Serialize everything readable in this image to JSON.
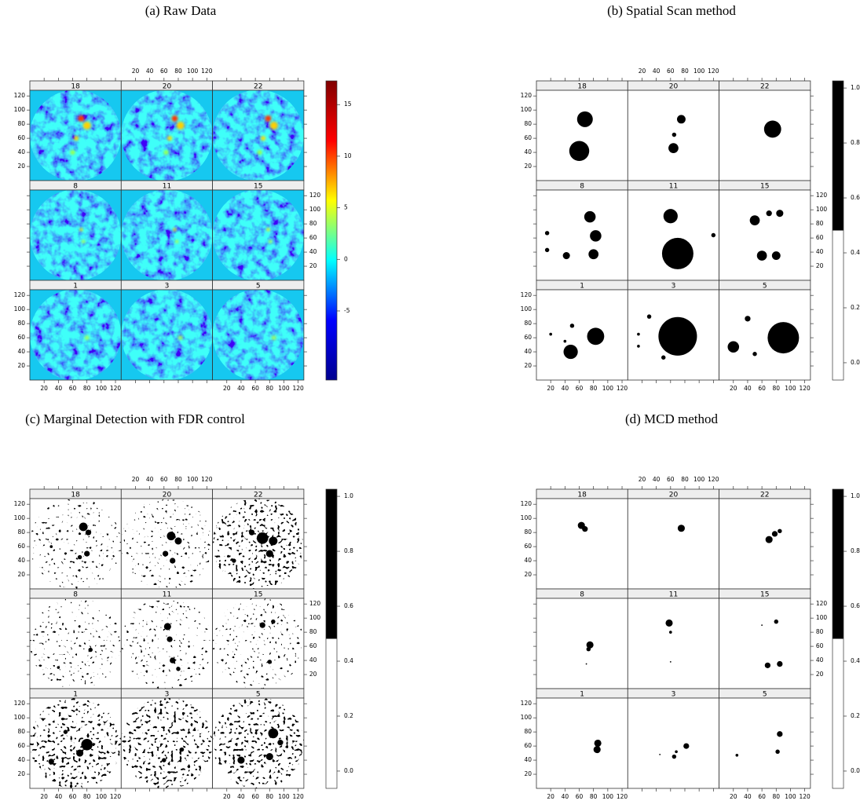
{
  "panels": [
    {
      "caption": "(a) Raw Data",
      "type": "heatmap",
      "strips": [
        "18",
        "20",
        "22",
        "8",
        "11",
        "15",
        "1",
        "3",
        "5"
      ],
      "axis_range": [
        0,
        128
      ],
      "ticks": [
        20,
        40,
        60,
        80,
        100,
        120
      ],
      "colorbar": {
        "range": [
          -11.7,
          17.3
        ],
        "ticks": [
          -5,
          0,
          5,
          10,
          15
        ],
        "colors": [
          "#00008f",
          "#0000ff",
          "#00ffff",
          "#ffff00",
          "#ff0000",
          "#800000"
        ]
      }
    },
    {
      "caption": "(b) Spatial Scan method",
      "type": "scan",
      "strips": [
        "18",
        "20",
        "22",
        "8",
        "11",
        "15",
        "1",
        "3",
        "5"
      ],
      "axis_range": [
        0,
        128
      ],
      "ticks": [
        20,
        40,
        60,
        80,
        100,
        120
      ],
      "colorbar": {
        "range": [
          -0.063,
          1.026
        ],
        "ticks": [
          {
            "value": 0,
            "label": "0.0"
          },
          0.2,
          0.4,
          0.6,
          0.8,
          {
            "value": 1,
            "label": "1.0"
          }
        ],
        "colors": [
          "#ffffff",
          "#000000"
        ]
      }
    },
    {
      "caption": "(c) Marginal Detection with FDR control",
      "type": "fdr",
      "strips": [
        "18",
        "20",
        "22",
        "8",
        "11",
        "15",
        "1",
        "3",
        "5"
      ],
      "axis_range": [
        0,
        128
      ],
      "ticks": [
        20,
        40,
        60,
        80,
        100,
        120
      ],
      "colorbar": {
        "range": [
          -0.063,
          1.026
        ],
        "ticks": [
          {
            "value": 0,
            "label": "0.0"
          },
          0.2,
          0.4,
          0.6,
          0.8,
          {
            "value": 1,
            "label": "1.0"
          }
        ],
        "colors": [
          "#ffffff",
          "#000000"
        ]
      }
    },
    {
      "caption": "(d) MCD method",
      "type": "mcd",
      "strips": [
        "18",
        "20",
        "22",
        "8",
        "11",
        "15",
        "1",
        "3",
        "5"
      ],
      "axis_range": [
        0,
        128
      ],
      "ticks": [
        20,
        40,
        60,
        80,
        100,
        120
      ],
      "colorbar": {
        "range": [
          -0.063,
          1.026
        ],
        "ticks": [
          {
            "value": 0,
            "label": "0.0"
          },
          0.2,
          0.4,
          0.6,
          0.8,
          {
            "value": 1,
            "label": "1.0"
          }
        ],
        "colors": [
          "#ffffff",
          "#000000"
        ]
      }
    }
  ]
}
